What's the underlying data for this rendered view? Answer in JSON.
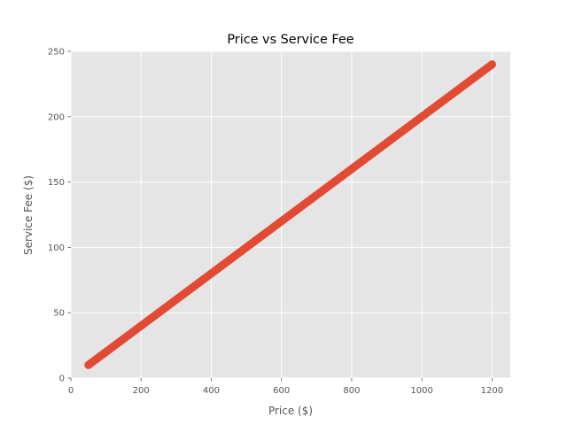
{
  "chart_data": {
    "type": "scatter",
    "title": "Price vs Service Fee",
    "xlabel": "Price ($)",
    "ylabel": "Service Fee ($)",
    "xlim": [
      0,
      1252
    ],
    "ylim": [
      0,
      250
    ],
    "xticks": [
      0,
      200,
      400,
      600,
      800,
      1000,
      1200
    ],
    "yticks": [
      0,
      50,
      100,
      150,
      200,
      250
    ],
    "grid": true,
    "series": [
      {
        "color": "#E24A33",
        "relation": "service_fee = 0.2 * price",
        "x_range": [
          50,
          1200
        ],
        "x": [
          50,
          100,
          150,
          200,
          250,
          300,
          350,
          400,
          450,
          500,
          550,
          600,
          650,
          700,
          750,
          800,
          850,
          900,
          950,
          1000,
          1050,
          1100,
          1150,
          1200
        ],
        "y": [
          10,
          20,
          30,
          40,
          50,
          60,
          70,
          80,
          90,
          100,
          110,
          120,
          130,
          140,
          150,
          160,
          170,
          180,
          190,
          200,
          210,
          220,
          230,
          240
        ]
      }
    ]
  },
  "colors": {
    "plot_background": "#E5E5E5",
    "grid": "#FFFFFF",
    "text": "#555555",
    "title": "#000000"
  }
}
